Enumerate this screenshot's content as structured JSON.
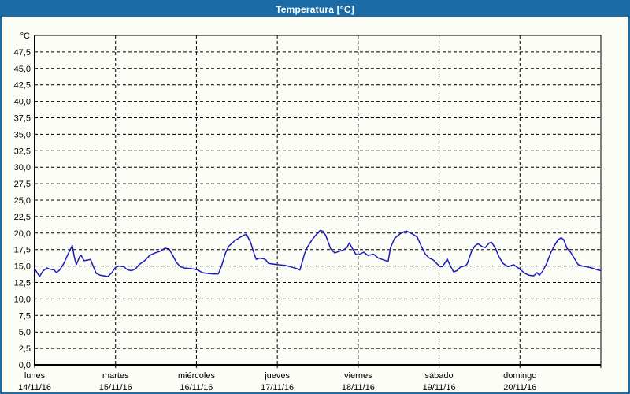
{
  "window": {
    "title": "Temperatura [°C]",
    "colors": {
      "titlebar": "#1b6ba7",
      "window_border": "#1b6ba7",
      "background": "#fcfdf6",
      "plot_border": "#000000",
      "grid": "#000000",
      "text": "#000000",
      "line": "#1a1ab8"
    }
  },
  "chart_data": {
    "type": "line",
    "title": "Temperatura [°C]",
    "y_unit_label": "°C",
    "ylim": [
      0,
      50
    ],
    "ytick_step": 2.5,
    "ytick_values": [
      0,
      2.5,
      5,
      7.5,
      10,
      12.5,
      15,
      17.5,
      20,
      22.5,
      25,
      27.5,
      30,
      32.5,
      35,
      37.5,
      40,
      42.5,
      45,
      47.5
    ],
    "ytick_labels": [
      "0,0",
      "2,5",
      "5,0",
      "7,5",
      "10,0",
      "12,5",
      "15,0",
      "17,5",
      "20,0",
      "22,5",
      "25,0",
      "27,5",
      "30,0",
      "32,5",
      "35,0",
      "37,5",
      "40,0",
      "42,5",
      "45,0",
      "47,5"
    ],
    "x_range_days": [
      0,
      7
    ],
    "x_categories": [
      {
        "day": "lunes",
        "date": "14/11/16"
      },
      {
        "day": "martes",
        "date": "15/11/16"
      },
      {
        "day": "miércoles",
        "date": "16/11/16"
      },
      {
        "day": "jueves",
        "date": "17/11/16"
      },
      {
        "day": "viernes",
        "date": "18/11/16"
      },
      {
        "day": "sábado",
        "date": "19/11/16"
      },
      {
        "day": "domingo",
        "date": "20/11/16"
      }
    ],
    "grid": {
      "style": "dashed",
      "horizontal_every": 2.5,
      "vertical_every_days": 1
    },
    "legend": "none",
    "series": [
      {
        "name": "Temperatura",
        "color": "#1a1ab8",
        "points": [
          [
            0.0,
            14.6
          ],
          [
            0.03,
            14.0
          ],
          [
            0.06,
            13.4
          ],
          [
            0.1,
            14.2
          ],
          [
            0.15,
            14.7
          ],
          [
            0.2,
            14.5
          ],
          [
            0.24,
            14.4
          ],
          [
            0.27,
            14.0
          ],
          [
            0.31,
            14.4
          ],
          [
            0.36,
            15.4
          ],
          [
            0.42,
            17.0
          ],
          [
            0.465,
            18.1
          ],
          [
            0.49,
            16.4
          ],
          [
            0.515,
            15.2
          ],
          [
            0.555,
            16.4
          ],
          [
            0.575,
            16.6
          ],
          [
            0.61,
            15.8
          ],
          [
            0.65,
            15.9
          ],
          [
            0.69,
            16.0
          ],
          [
            0.73,
            14.8
          ],
          [
            0.76,
            13.9
          ],
          [
            0.81,
            13.6
          ],
          [
            0.86,
            13.5
          ],
          [
            0.905,
            13.4
          ],
          [
            0.955,
            14.0
          ],
          [
            1.0,
            14.8
          ],
          [
            1.05,
            15.0
          ],
          [
            1.1,
            14.9
          ],
          [
            1.15,
            14.4
          ],
          [
            1.2,
            14.3
          ],
          [
            1.25,
            14.6
          ],
          [
            1.29,
            15.2
          ],
          [
            1.36,
            15.8
          ],
          [
            1.42,
            16.6
          ],
          [
            1.49,
            17.0
          ],
          [
            1.56,
            17.3
          ],
          [
            1.61,
            17.7
          ],
          [
            1.66,
            17.6
          ],
          [
            1.7,
            16.8
          ],
          [
            1.75,
            15.6
          ],
          [
            1.8,
            14.9
          ],
          [
            1.85,
            14.7
          ],
          [
            1.93,
            14.6
          ],
          [
            1.98,
            14.5
          ],
          [
            2.02,
            14.4
          ],
          [
            2.07,
            14.0
          ],
          [
            2.12,
            13.9
          ],
          [
            2.2,
            13.8
          ],
          [
            2.27,
            13.8
          ],
          [
            2.31,
            15.0
          ],
          [
            2.36,
            17.0
          ],
          [
            2.4,
            18.0
          ],
          [
            2.47,
            18.8
          ],
          [
            2.53,
            19.3
          ],
          [
            2.59,
            19.7
          ],
          [
            2.62,
            19.8
          ],
          [
            2.67,
            18.6
          ],
          [
            2.72,
            16.6
          ],
          [
            2.74,
            16.0
          ],
          [
            2.78,
            16.2
          ],
          [
            2.83,
            16.1
          ],
          [
            2.86,
            15.9
          ],
          [
            2.89,
            15.4
          ],
          [
            2.95,
            15.3
          ],
          [
            3.0,
            15.2
          ],
          [
            3.1,
            15.1
          ],
          [
            3.19,
            14.8
          ],
          [
            3.24,
            14.6
          ],
          [
            3.28,
            14.4
          ],
          [
            3.34,
            17.0
          ],
          [
            3.37,
            17.8
          ],
          [
            3.42,
            18.8
          ],
          [
            3.47,
            19.6
          ],
          [
            3.5,
            20.0
          ],
          [
            3.53,
            20.4
          ],
          [
            3.56,
            20.3
          ],
          [
            3.6,
            19.6
          ],
          [
            3.63,
            18.6
          ],
          [
            3.66,
            17.6
          ],
          [
            3.71,
            17.0
          ],
          [
            3.76,
            17.2
          ],
          [
            3.81,
            17.4
          ],
          [
            3.86,
            17.8
          ],
          [
            3.89,
            18.5
          ],
          [
            3.94,
            17.4
          ],
          [
            3.97,
            16.8
          ],
          [
            4.0,
            16.7
          ],
          [
            4.07,
            17.1
          ],
          [
            4.12,
            16.6
          ],
          [
            4.19,
            16.8
          ],
          [
            4.25,
            16.2
          ],
          [
            4.32,
            15.9
          ],
          [
            4.37,
            15.7
          ],
          [
            4.4,
            17.8
          ],
          [
            4.45,
            19.2
          ],
          [
            4.52,
            19.9
          ],
          [
            4.57,
            20.2
          ],
          [
            4.6,
            20.3
          ],
          [
            4.63,
            20.1
          ],
          [
            4.68,
            19.8
          ],
          [
            4.73,
            19.4
          ],
          [
            4.78,
            18.0
          ],
          [
            4.83,
            16.8
          ],
          [
            4.88,
            16.2
          ],
          [
            4.93,
            15.9
          ],
          [
            4.97,
            15.4
          ],
          [
            5.01,
            14.9
          ],
          [
            5.04,
            14.9
          ],
          [
            5.08,
            15.6
          ],
          [
            5.1,
            16.1
          ],
          [
            5.14,
            15.0
          ],
          [
            5.18,
            14.1
          ],
          [
            5.22,
            14.3
          ],
          [
            5.26,
            14.8
          ],
          [
            5.33,
            15.1
          ],
          [
            5.35,
            15.4
          ],
          [
            5.4,
            17.2
          ],
          [
            5.44,
            18.0
          ],
          [
            5.48,
            18.4
          ],
          [
            5.54,
            17.9
          ],
          [
            5.57,
            17.8
          ],
          [
            5.62,
            18.5
          ],
          [
            5.65,
            18.6
          ],
          [
            5.7,
            17.6
          ],
          [
            5.74,
            16.4
          ],
          [
            5.79,
            15.4
          ],
          [
            5.85,
            14.9
          ],
          [
            5.92,
            15.2
          ],
          [
            5.99,
            14.6
          ],
          [
            6.02,
            14.3
          ],
          [
            6.06,
            13.9
          ],
          [
            6.11,
            13.6
          ],
          [
            6.17,
            13.5
          ],
          [
            6.21,
            14.0
          ],
          [
            6.24,
            13.6
          ],
          [
            6.28,
            14.2
          ],
          [
            6.33,
            15.4
          ],
          [
            6.38,
            17.0
          ],
          [
            6.43,
            18.2
          ],
          [
            6.47,
            19.0
          ],
          [
            6.51,
            19.3
          ],
          [
            6.54,
            19.0
          ],
          [
            6.58,
            17.7
          ],
          [
            6.62,
            17.2
          ],
          [
            6.67,
            16.2
          ],
          [
            6.72,
            15.2
          ],
          [
            6.77,
            15.0
          ],
          [
            6.82,
            14.9
          ],
          [
            6.89,
            14.7
          ],
          [
            6.96,
            14.4
          ],
          [
            7.0,
            14.3
          ]
        ]
      }
    ]
  }
}
